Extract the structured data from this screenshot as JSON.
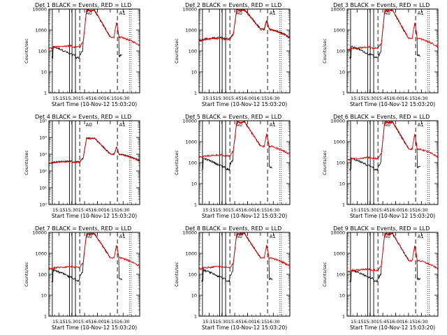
{
  "figure": {
    "title_template": "Det {d}  BLACK = Events, RED = LLD",
    "xlabel": "Start Time (10-Nov-12 15:03:20)",
    "ylabel": "Counts/sec",
    "panel_annotations": [
      "A0",
      "A1"
    ]
  },
  "colors": {
    "events": "#000000",
    "lld": "#dd0000",
    "axes": "#000000",
    "background": "#ffffff"
  },
  "chart_data": [
    {
      "type": "line",
      "detector": "1",
      "title": "Det 1  BLACK = Events, RED = LLD",
      "xlabel": "Start Time (10-Nov-12 15:03:20)",
      "ylabel": "Counts/sec",
      "yscale": "log",
      "ylim": [
        1,
        10000
      ],
      "xticks": [
        "15:15",
        "15:30",
        "15:45",
        "16:00",
        "16:15",
        "16:30"
      ],
      "yticks": [
        "1",
        "10",
        "100",
        "1000",
        "10000"
      ],
      "events_min": 40,
      "lld_base": 150,
      "solid_markers_min": [
        4,
        24,
        27,
        31
      ],
      "dashed_markers_min": [
        36,
        80
      ],
      "dotted_markers_min": [
        94,
        96
      ],
      "series": [
        {
          "name": "BLACK = Events",
          "color": "#000000"
        },
        {
          "name": "RED = LLD",
          "color": "#dd0000"
        }
      ]
    },
    {
      "type": "line",
      "detector": "2",
      "title": "Det 2  BLACK = Events, RED = LLD",
      "xlabel": "Start Time (10-Nov-12 15:03:20)",
      "ylabel": "Counts/sec",
      "yscale": "log",
      "ylim": [
        1,
        10000
      ],
      "xticks": [
        "15:15",
        "15:30",
        "15:45",
        "16:00",
        "16:15",
        "16:30"
      ],
      "yticks": [
        "1",
        "10",
        "100",
        "1000",
        "10000"
      ],
      "events_min": 400,
      "lld_base": 350,
      "solid_markers_min": [
        4,
        24,
        27,
        31
      ],
      "dashed_markers_min": [
        36,
        80
      ],
      "dotted_markers_min": [
        94,
        96
      ],
      "series": [
        {
          "name": "BLACK = Events",
          "color": "#000000"
        },
        {
          "name": "RED = LLD",
          "color": "#dd0000"
        }
      ]
    },
    {
      "type": "line",
      "detector": "3",
      "title": "Det 3  BLACK = Events, RED = LLD",
      "xlabel": "Start Time (10-Nov-12 15:03:20)",
      "ylabel": "Counts/sec",
      "yscale": "log",
      "ylim": [
        1,
        10000
      ],
      "xticks": [
        "15:15",
        "15:30",
        "15:45",
        "16:00",
        "16:15",
        "16:30"
      ],
      "yticks": [
        "1",
        "10",
        "100",
        "1000",
        "10000"
      ],
      "events_min": 40,
      "lld_base": 130,
      "solid_markers_min": [
        4,
        24,
        27,
        31
      ],
      "dashed_markers_min": [
        36,
        80
      ],
      "dotted_markers_min": [
        94,
        96
      ],
      "series": [
        {
          "name": "BLACK = Events",
          "color": "#000000"
        },
        {
          "name": "RED = LLD",
          "color": "#dd0000"
        }
      ]
    },
    {
      "type": "line",
      "detector": "4",
      "title": "Det 4  BLACK = Events, RED = LLD",
      "xlabel": "Start Time (10-Nov-12 15:03:20)",
      "ylabel": "Counts/sec",
      "yscale": "log",
      "ylim": [
        1,
        100000
      ],
      "xticks": [
        "15:15",
        "15:30",
        "15:45",
        "16:00",
        "16:15",
        "16:30"
      ],
      "yticks": [
        "10⁰",
        "10¹",
        "10²",
        "10³",
        "10⁴",
        "10⁵"
      ],
      "events_min": 300,
      "lld_base": 320,
      "solid_markers_min": [
        4,
        24,
        27,
        31
      ],
      "dashed_markers_min": [
        36,
        80
      ],
      "dotted_markers_min": [
        94,
        96
      ],
      "series": [
        {
          "name": "BLACK = Events",
          "color": "#000000"
        },
        {
          "name": "RED = LLD",
          "color": "#dd0000"
        }
      ]
    },
    {
      "type": "line",
      "detector": "5",
      "title": "Det 5  BLACK = Events, RED = LLD",
      "xlabel": "Start Time (10-Nov-12 15:03:20)",
      "ylabel": "Counts/sec",
      "yscale": "log",
      "ylim": [
        1,
        10000
      ],
      "xticks": [
        "15:15",
        "15:30",
        "15:45",
        "16:00",
        "16:15",
        "16:30"
      ],
      "yticks": [
        "1",
        "10",
        "100",
        "1000",
        "10000"
      ],
      "events_min": 40,
      "lld_base": 200,
      "solid_markers_min": [
        4,
        24,
        27,
        31
      ],
      "dashed_markers_min": [
        36,
        80
      ],
      "dotted_markers_min": [
        94,
        96
      ],
      "series": [
        {
          "name": "BLACK = Events",
          "color": "#000000"
        },
        {
          "name": "RED = LLD",
          "color": "#dd0000"
        }
      ]
    },
    {
      "type": "line",
      "detector": "6",
      "title": "Det 6  BLACK = Events, RED = LLD",
      "xlabel": "Start Time (10-Nov-12 15:03:20)",
      "ylabel": "Counts/sec",
      "yscale": "log",
      "ylim": [
        1,
        10000
      ],
      "xticks": [
        "15:15",
        "15:30",
        "15:45",
        "16:00",
        "16:15",
        "16:30"
      ],
      "yticks": [
        "1",
        "10",
        "100",
        "1000",
        "10000"
      ],
      "events_min": 40,
      "lld_base": 150,
      "solid_markers_min": [
        4,
        24,
        27,
        31
      ],
      "dashed_markers_min": [
        36,
        80
      ],
      "dotted_markers_min": [
        94,
        96
      ],
      "series": [
        {
          "name": "BLACK = Events",
          "color": "#000000"
        },
        {
          "name": "RED = LLD",
          "color": "#dd0000"
        }
      ]
    },
    {
      "type": "line",
      "detector": "7",
      "title": "Det 7  BLACK = Events, RED = LLD",
      "xlabel": "Start Time (10-Nov-12 15:03:20)",
      "ylabel": "Counts/sec",
      "yscale": "log",
      "ylim": [
        1,
        10000
      ],
      "xticks": [
        "15:15",
        "15:30",
        "15:45",
        "16:00",
        "16:15",
        "16:30"
      ],
      "yticks": [
        "1",
        "10",
        "100",
        "1000",
        "10000"
      ],
      "events_min": 40,
      "lld_base": 200,
      "solid_markers_min": [
        4,
        24,
        27,
        31
      ],
      "dashed_markers_min": [
        36,
        80
      ],
      "dotted_markers_min": [
        94,
        96
      ],
      "series": [
        {
          "name": "BLACK = Events",
          "color": "#000000"
        },
        {
          "name": "RED = LLD",
          "color": "#dd0000"
        }
      ]
    },
    {
      "type": "line",
      "detector": "8",
      "title": "Det 8  BLACK = Events, RED = LLD",
      "xlabel": "Start Time (10-Nov-12 15:03:20)",
      "ylabel": "Counts/sec",
      "yscale": "log",
      "ylim": [
        1,
        10000
      ],
      "xticks": [
        "15:15",
        "15:30",
        "15:45",
        "16:00",
        "16:15",
        "16:30"
      ],
      "yticks": [
        "1",
        "10",
        "100",
        "1000",
        "10000"
      ],
      "events_min": 40,
      "lld_base": 200,
      "solid_markers_min": [
        4,
        24,
        27,
        31
      ],
      "dashed_markers_min": [
        36,
        80
      ],
      "dotted_markers_min": [
        94,
        96
      ],
      "series": [
        {
          "name": "BLACK = Events",
          "color": "#000000"
        },
        {
          "name": "RED = LLD",
          "color": "#dd0000"
        }
      ]
    },
    {
      "type": "line",
      "detector": "9",
      "title": "Det 9  BLACK = Events, RED = LLD",
      "xlabel": "Start Time (10-Nov-12 15:03:20)",
      "ylabel": "Counts/sec",
      "yscale": "log",
      "ylim": [
        1,
        10000
      ],
      "xticks": [
        "15:15",
        "15:30",
        "15:45",
        "16:00",
        "16:15",
        "16:30"
      ],
      "yticks": [
        "1",
        "10",
        "100",
        "1000",
        "10000"
      ],
      "events_min": 40,
      "lld_base": 150,
      "solid_markers_min": [
        4,
        24,
        27,
        31
      ],
      "dashed_markers_min": [
        36,
        80
      ],
      "dotted_markers_min": [
        94,
        96
      ],
      "series": [
        {
          "name": "BLACK = Events",
          "color": "#000000"
        },
        {
          "name": "RED = LLD",
          "color": "#dd0000"
        }
      ]
    }
  ]
}
